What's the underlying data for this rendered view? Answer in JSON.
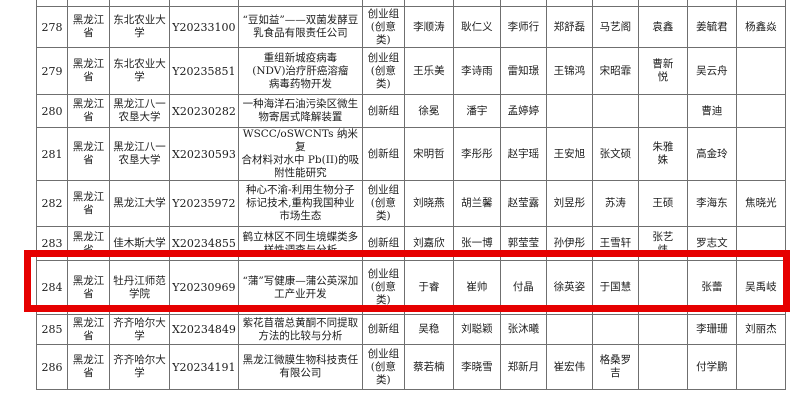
{
  "highlight": {
    "color": "#e60000",
    "highlighted_row_number": "284"
  },
  "table": {
    "rows": [
      {
        "num": "278",
        "province": "黑龙江\n省",
        "university": "东北农业大\n学",
        "code": "Y20233100",
        "project": "“豆如益”——双菌发酵豆\n乳食品有限责任公司",
        "group": "创业组\n(创意\n类)",
        "names": [
          "李顺涛",
          "耿仁义",
          "李师行",
          "郑舒磊",
          "马艺阁",
          "袁鑫",
          "姜毓君",
          "杨鑫焱"
        ]
      },
      {
        "num": "279",
        "province": "黑龙江\n省",
        "university": "东北农业大\n学",
        "code": "Y20235851",
        "project": "重组新城疫病毒\n(NDV)治疗肝癌溶瘤\n病毒药物开发",
        "group": "创业组\n(创意\n类)",
        "names": [
          "王乐美",
          "李诗雨",
          "雷知璟",
          "王锦鸿",
          "宋昭霏",
          "曹新\n悦",
          "吴云舟",
          ""
        ]
      },
      {
        "num": "280",
        "province": "黑龙江\n省",
        "university": "黑龙江八一\n农垦大学",
        "code": "X20230282",
        "project": "一种海洋石油污染区微生\n物寄居式降解装置",
        "group": "创新组",
        "names": [
          "徐冕",
          "潘宇",
          "孟婷婷",
          "",
          "",
          "",
          "曹迪",
          ""
        ]
      },
      {
        "num": "281",
        "province": "黑龙江\n省",
        "university": "黑龙江八一\n农垦大学",
        "code": "X20230593",
        "project": "WSCC/oSWCNTs 纳米复\n合材料对水中 Pb(II)的吸\n附性能研究",
        "group": "创新组",
        "names": [
          "宋明哲",
          "李彤彤",
          "赵宇瑶",
          "王安旭",
          "张文硕",
          "朱雅\n姝",
          "高金玲",
          ""
        ]
      },
      {
        "num": "282",
        "province": "黑龙江\n省",
        "university": "黑龙江大学",
        "code": "Y20235972",
        "project": "种心不渝-利用生物分子\n标记技术,重构我国种业\n市场生态",
        "group": "创业组\n(创意\n类)",
        "names": [
          "刘晓燕",
          "胡兰馨",
          "赵莹露",
          "刘昱彤",
          "苏涛",
          "王硕",
          "李海东",
          "焦晓光"
        ]
      },
      {
        "num": "283",
        "province": "黑龙江\n省",
        "university": "佳木斯大学",
        "code": "X20234855",
        "project": "鹤立林区不同生境蝶类多\n样性调查与分析",
        "group": "创新组",
        "names": [
          "刘嘉欣",
          "张一博",
          "郭莹莹",
          "孙伊彤",
          "王雪轩",
          "张艺\n炜",
          "罗志文",
          ""
        ]
      },
      {
        "num": "284",
        "province": "黑龙江\n省",
        "university": "牡丹江师范\n学院",
        "code": "Y20230969",
        "project": "“蒲”写健康—蒲公英深加\n工产业开发",
        "group": "创业组\n(创意\n类)",
        "names": [
          "于睿",
          "崔帅",
          "付晶",
          "徐英姿",
          "于国慧",
          "",
          "张蕾",
          "吴禹岐"
        ]
      },
      {
        "num": "285",
        "province": "黑龙江\n省",
        "university": "齐齐哈尔大\n学",
        "code": "X20234849",
        "project": "紫花苜蓿总黄酮不同提取\n方法的比较与分析",
        "group": "创新组",
        "names": [
          "吴稳",
          "刘聪颖",
          "张沐曦",
          "",
          "",
          "",
          "李珊珊",
          "刘丽杰"
        ]
      },
      {
        "num": "286",
        "province": "黑龙江\n省",
        "university": "齐齐哈尔大\n学",
        "code": "Y20234191",
        "project": "黑龙江微膜生物科技责任\n有限公司",
        "group": "创业组\n(创意\n类)",
        "names": [
          "蔡若楠",
          "李晓雪",
          "郑新月",
          "崔宏伟",
          "格桑罗\n吉",
          "",
          "付学鹏",
          ""
        ]
      }
    ]
  }
}
